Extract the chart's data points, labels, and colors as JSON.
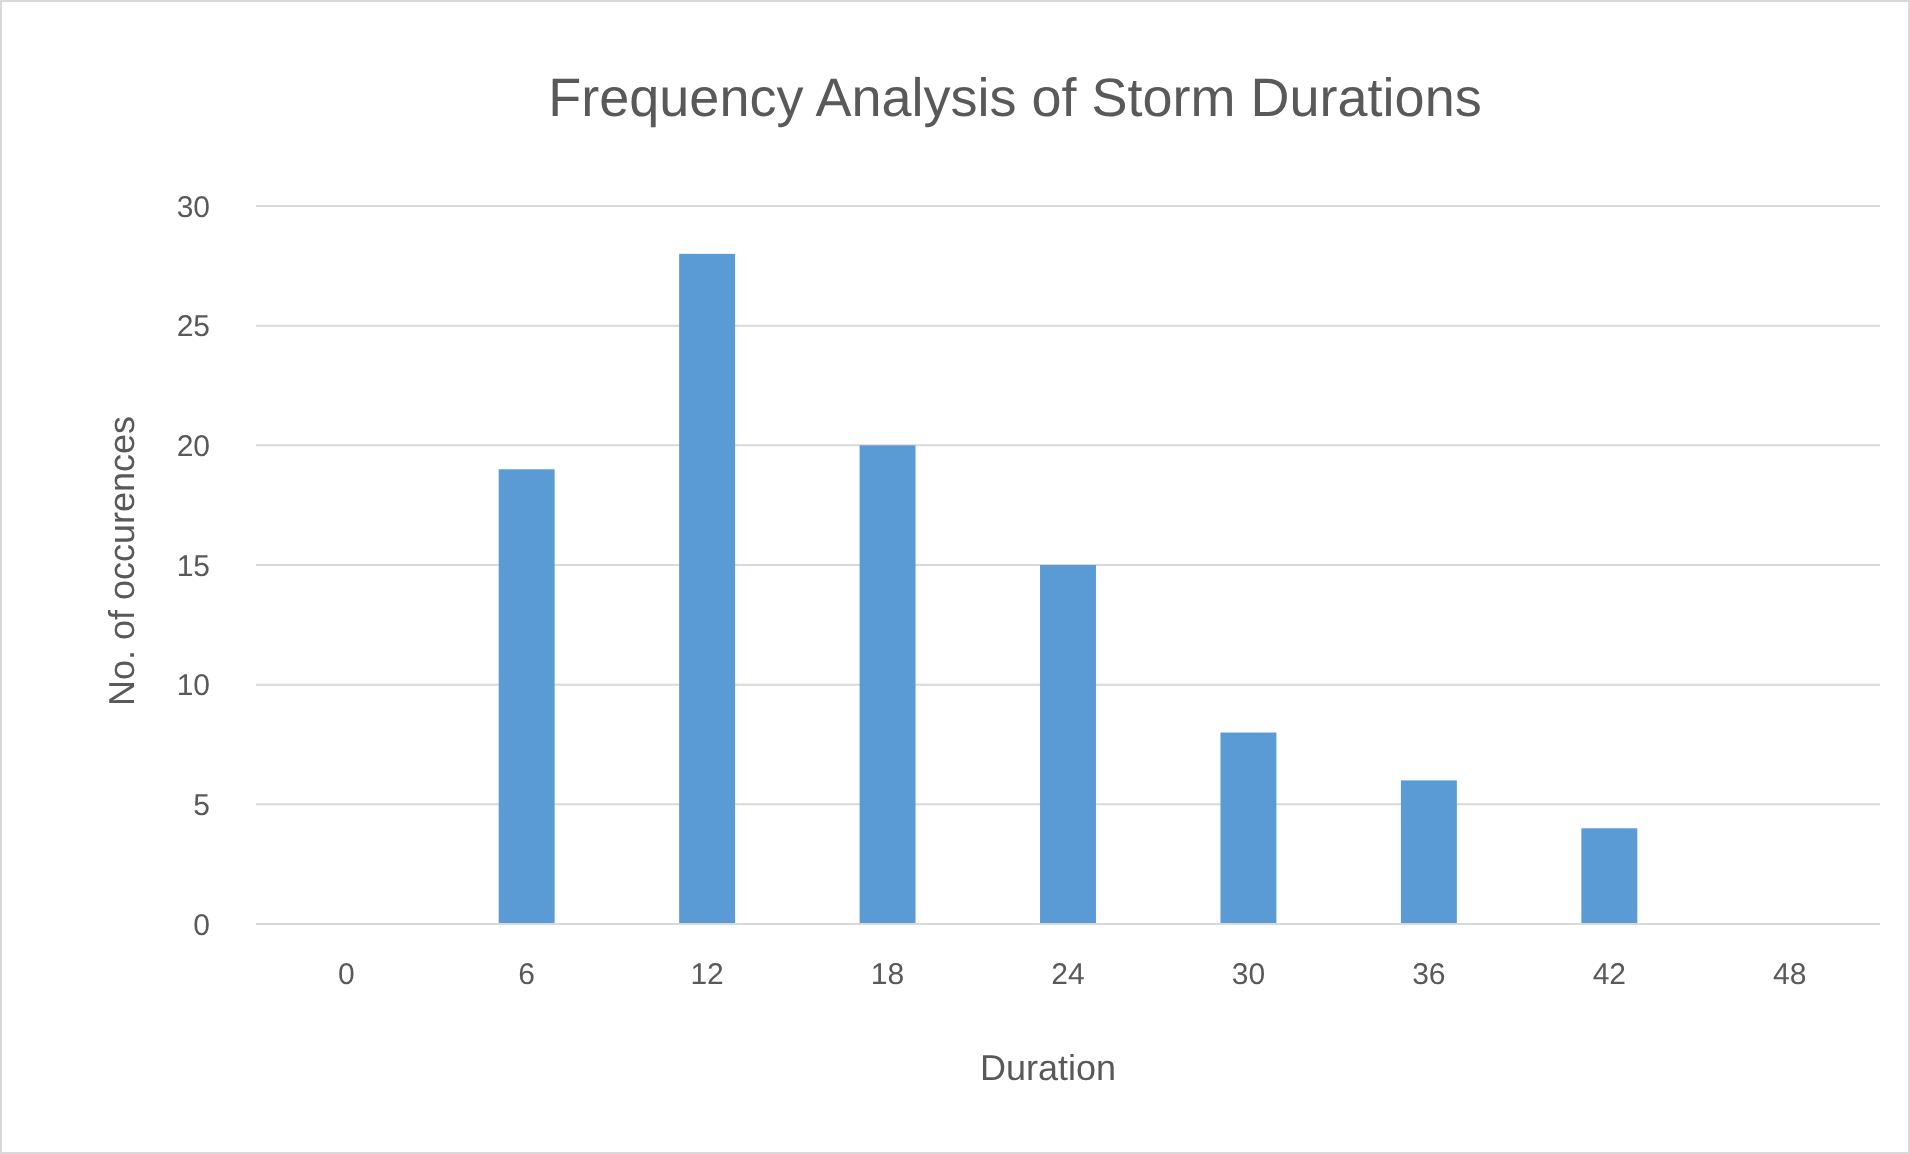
{
  "chart_data": {
    "type": "bar",
    "title": "Frequency Analysis of Storm Durations",
    "xlabel": "Duration",
    "ylabel": "No. of occurences",
    "categories": [
      "0",
      "6",
      "12",
      "18",
      "24",
      "30",
      "36",
      "42",
      "48"
    ],
    "values": [
      0,
      19,
      28,
      20,
      15,
      8,
      6,
      4,
      0
    ],
    "color": "#5b9bd5",
    "ylim": [
      0,
      30
    ],
    "yticks": [
      0,
      5,
      10,
      15,
      20,
      25,
      30
    ],
    "grid": "y"
  }
}
